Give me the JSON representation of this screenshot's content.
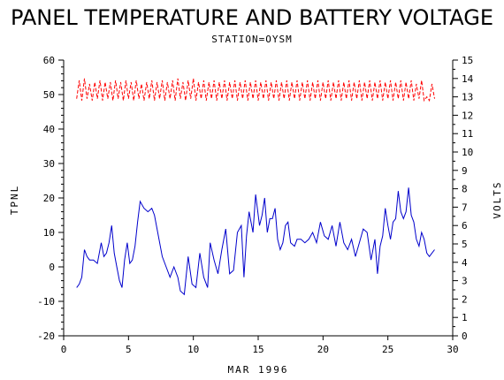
{
  "chart_data": {
    "type": "line",
    "title": "PANEL TEMPERATURE AND BATTERY VOLTAGE",
    "subtitle": "STATION=OYSM",
    "xlabel": "MAR 1996",
    "ylabel_left": "TPNL",
    "ylabel_right": "VOLTS",
    "xlim": [
      0,
      30
    ],
    "ylim_left": [
      -20,
      60
    ],
    "ylim_right": [
      0,
      15
    ],
    "x_ticks": [
      "0",
      "5",
      "10",
      "15",
      "20",
      "25",
      "30"
    ],
    "y_left_ticks": [
      "-20",
      "-10",
      "0",
      "10",
      "20",
      "30",
      "40",
      "50",
      "60"
    ],
    "y_right_ticks": [
      "0",
      "1",
      "2",
      "3",
      "4",
      "5",
      "6",
      "7",
      "8",
      "9",
      "10",
      "11",
      "12",
      "13",
      "14",
      "15"
    ],
    "grid": false,
    "series": [
      {
        "axis": "left",
        "color": "#0000cc",
        "style": "solid",
        "points": [
          [
            1.0,
            -6
          ],
          [
            1.2,
            -5
          ],
          [
            1.4,
            -3
          ],
          [
            1.6,
            5
          ],
          [
            1.8,
            3
          ],
          [
            2.0,
            2
          ],
          [
            2.3,
            2
          ],
          [
            2.6,
            1
          ],
          [
            2.9,
            7
          ],
          [
            3.1,
            3
          ],
          [
            3.3,
            4
          ],
          [
            3.5,
            7
          ],
          [
            3.7,
            12
          ],
          [
            3.9,
            4
          ],
          [
            4.1,
            0
          ],
          [
            4.3,
            -4
          ],
          [
            4.5,
            -6
          ],
          [
            4.7,
            2
          ],
          [
            4.9,
            7
          ],
          [
            5.1,
            1
          ],
          [
            5.3,
            2
          ],
          [
            5.5,
            6
          ],
          [
            5.7,
            13
          ],
          [
            5.9,
            19
          ],
          [
            6.2,
            17
          ],
          [
            6.5,
            16
          ],
          [
            6.8,
            17
          ],
          [
            7.0,
            15
          ],
          [
            7.3,
            9
          ],
          [
            7.6,
            3
          ],
          [
            7.9,
            0
          ],
          [
            8.2,
            -3
          ],
          [
            8.5,
            0
          ],
          [
            8.8,
            -3
          ],
          [
            9.0,
            -7
          ],
          [
            9.3,
            -8
          ],
          [
            9.6,
            3
          ],
          [
            9.9,
            -5
          ],
          [
            10.2,
            -6
          ],
          [
            10.5,
            4
          ],
          [
            10.8,
            -3
          ],
          [
            11.1,
            -6
          ],
          [
            11.3,
            7
          ],
          [
            11.6,
            2
          ],
          [
            11.9,
            -2
          ],
          [
            12.2,
            5
          ],
          [
            12.5,
            11
          ],
          [
            12.8,
            -2
          ],
          [
            13.1,
            -1
          ],
          [
            13.4,
            10
          ],
          [
            13.7,
            12
          ],
          [
            13.9,
            -3
          ],
          [
            14.1,
            9
          ],
          [
            14.3,
            16
          ],
          [
            14.6,
            10
          ],
          [
            14.8,
            21
          ],
          [
            15.1,
            12
          ],
          [
            15.3,
            15
          ],
          [
            15.5,
            20
          ],
          [
            15.7,
            10
          ],
          [
            15.9,
            14
          ],
          [
            16.1,
            14
          ],
          [
            16.3,
            17
          ],
          [
            16.5,
            8
          ],
          [
            16.7,
            5
          ],
          [
            16.9,
            7
          ],
          [
            17.1,
            12
          ],
          [
            17.3,
            13
          ],
          [
            17.5,
            7
          ],
          [
            17.8,
            6
          ],
          [
            18.0,
            8
          ],
          [
            18.3,
            8
          ],
          [
            18.6,
            7
          ],
          [
            18.9,
            8
          ],
          [
            19.2,
            10
          ],
          [
            19.5,
            7
          ],
          [
            19.8,
            13
          ],
          [
            20.1,
            9
          ],
          [
            20.4,
            8
          ],
          [
            20.7,
            12
          ],
          [
            21.0,
            6
          ],
          [
            21.3,
            13
          ],
          [
            21.6,
            7
          ],
          [
            21.9,
            5
          ],
          [
            22.2,
            8
          ],
          [
            22.5,
            3
          ],
          [
            22.8,
            7
          ],
          [
            23.1,
            11
          ],
          [
            23.4,
            10
          ],
          [
            23.7,
            2
          ],
          [
            24.0,
            8
          ],
          [
            24.2,
            -2
          ],
          [
            24.4,
            6
          ],
          [
            24.6,
            9
          ],
          [
            24.8,
            17
          ],
          [
            25.0,
            12
          ],
          [
            25.2,
            8
          ],
          [
            25.4,
            13
          ],
          [
            25.6,
            14
          ],
          [
            25.8,
            22
          ],
          [
            26.0,
            16
          ],
          [
            26.2,
            14
          ],
          [
            26.4,
            16
          ],
          [
            26.6,
            23
          ],
          [
            26.8,
            15
          ],
          [
            27.0,
            13
          ],
          [
            27.2,
            8
          ],
          [
            27.4,
            6
          ],
          [
            27.6,
            10
          ],
          [
            27.8,
            8
          ],
          [
            28.0,
            4
          ],
          [
            28.2,
            3
          ],
          [
            28.4,
            4
          ],
          [
            28.6,
            5
          ]
        ]
      },
      {
        "axis": "right",
        "color": "#ff0000",
        "style": "dashed",
        "points": [
          [
            1.0,
            12.9
          ],
          [
            1.2,
            13.9
          ],
          [
            1.4,
            12.8
          ],
          [
            1.6,
            14.0
          ],
          [
            1.8,
            12.9
          ],
          [
            2.0,
            13.7
          ],
          [
            2.2,
            12.8
          ],
          [
            2.4,
            13.8
          ],
          [
            2.6,
            12.9
          ],
          [
            2.8,
            13.9
          ],
          [
            3.0,
            12.8
          ],
          [
            3.2,
            13.8
          ],
          [
            3.4,
            12.9
          ],
          [
            3.6,
            13.8
          ],
          [
            3.8,
            12.8
          ],
          [
            4.0,
            13.9
          ],
          [
            4.2,
            12.9
          ],
          [
            4.4,
            13.8
          ],
          [
            4.6,
            12.8
          ],
          [
            4.8,
            13.9
          ],
          [
            5.0,
            12.9
          ],
          [
            5.2,
            13.8
          ],
          [
            5.4,
            12.8
          ],
          [
            5.6,
            13.9
          ],
          [
            5.8,
            12.9
          ],
          [
            6.0,
            13.7
          ],
          [
            6.2,
            12.8
          ],
          [
            6.4,
            13.8
          ],
          [
            6.6,
            12.9
          ],
          [
            6.8,
            13.9
          ],
          [
            7.0,
            12.8
          ],
          [
            7.2,
            13.8
          ],
          [
            7.4,
            12.9
          ],
          [
            7.6,
            13.9
          ],
          [
            7.8,
            12.8
          ],
          [
            8.0,
            13.8
          ],
          [
            8.2,
            12.9
          ],
          [
            8.4,
            13.9
          ],
          [
            8.6,
            12.8
          ],
          [
            8.8,
            14.0
          ],
          [
            9.0,
            12.9
          ],
          [
            9.2,
            13.8
          ],
          [
            9.4,
            12.8
          ],
          [
            9.6,
            13.9
          ],
          [
            9.8,
            12.9
          ],
          [
            10.0,
            14.0
          ],
          [
            10.2,
            12.8
          ],
          [
            10.4,
            13.8
          ],
          [
            10.6,
            12.9
          ],
          [
            10.8,
            13.9
          ],
          [
            11.0,
            12.8
          ],
          [
            11.2,
            13.8
          ],
          [
            11.4,
            12.9
          ],
          [
            11.6,
            13.9
          ],
          [
            11.8,
            12.8
          ],
          [
            12.0,
            13.8
          ],
          [
            12.2,
            12.9
          ],
          [
            12.4,
            13.9
          ],
          [
            12.6,
            12.8
          ],
          [
            12.8,
            13.8
          ],
          [
            13.0,
            12.9
          ],
          [
            13.2,
            13.9
          ],
          [
            13.4,
            12.8
          ],
          [
            13.6,
            13.8
          ],
          [
            13.8,
            12.9
          ],
          [
            14.0,
            13.9
          ],
          [
            14.2,
            12.8
          ],
          [
            14.4,
            13.8
          ],
          [
            14.6,
            12.9
          ],
          [
            14.8,
            13.9
          ],
          [
            15.0,
            12.8
          ],
          [
            15.2,
            13.8
          ],
          [
            15.4,
            12.9
          ],
          [
            15.6,
            13.9
          ],
          [
            15.8,
            12.8
          ],
          [
            16.0,
            13.8
          ],
          [
            16.2,
            12.9
          ],
          [
            16.4,
            13.9
          ],
          [
            16.6,
            12.8
          ],
          [
            16.8,
            13.8
          ],
          [
            17.0,
            12.9
          ],
          [
            17.2,
            13.9
          ],
          [
            17.4,
            12.8
          ],
          [
            17.6,
            13.8
          ],
          [
            17.8,
            12.9
          ],
          [
            18.0,
            13.9
          ],
          [
            18.2,
            12.8
          ],
          [
            18.4,
            13.8
          ],
          [
            18.6,
            12.9
          ],
          [
            18.8,
            13.9
          ],
          [
            19.0,
            12.8
          ],
          [
            19.2,
            13.8
          ],
          [
            19.4,
            12.9
          ],
          [
            19.6,
            13.9
          ],
          [
            19.8,
            12.8
          ],
          [
            20.0,
            13.8
          ],
          [
            20.2,
            12.9
          ],
          [
            20.4,
            13.9
          ],
          [
            20.6,
            12.8
          ],
          [
            20.8,
            13.8
          ],
          [
            21.0,
            12.9
          ],
          [
            21.2,
            13.9
          ],
          [
            21.4,
            12.8
          ],
          [
            21.6,
            13.8
          ],
          [
            21.8,
            12.9
          ],
          [
            22.0,
            13.9
          ],
          [
            22.2,
            12.8
          ],
          [
            22.4,
            13.8
          ],
          [
            22.6,
            12.9
          ],
          [
            22.8,
            13.9
          ],
          [
            23.0,
            12.8
          ],
          [
            23.2,
            13.8
          ],
          [
            23.4,
            12.9
          ],
          [
            23.6,
            13.9
          ],
          [
            23.8,
            12.8
          ],
          [
            24.0,
            13.8
          ],
          [
            24.2,
            12.9
          ],
          [
            24.4,
            13.9
          ],
          [
            24.6,
            12.8
          ],
          [
            24.8,
            13.8
          ],
          [
            25.0,
            12.9
          ],
          [
            25.2,
            13.9
          ],
          [
            25.4,
            12.8
          ],
          [
            25.6,
            13.8
          ],
          [
            25.8,
            12.9
          ],
          [
            26.0,
            13.9
          ],
          [
            26.2,
            12.8
          ],
          [
            26.4,
            13.8
          ],
          [
            26.6,
            12.9
          ],
          [
            26.8,
            13.9
          ],
          [
            27.0,
            12.8
          ],
          [
            27.2,
            13.7
          ],
          [
            27.4,
            12.9
          ],
          [
            27.6,
            13.9
          ],
          [
            27.8,
            12.8
          ],
          [
            28.0,
            13.0
          ],
          [
            28.2,
            12.8
          ],
          [
            28.4,
            13.7
          ],
          [
            28.6,
            12.9
          ]
        ]
      }
    ]
  }
}
